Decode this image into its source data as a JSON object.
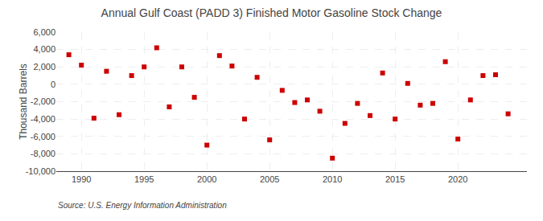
{
  "chart_data": {
    "type": "scatter",
    "title": "Annual Gulf Coast (PADD 3) Finished Motor Gasoline Stock Change",
    "ylabel": "Thousand Barrels",
    "source": "Source: U.S. Energy Information Administration",
    "x": [
      1989,
      1990,
      1991,
      1992,
      1993,
      1994,
      1995,
      1996,
      1997,
      1998,
      1999,
      2000,
      2001,
      2002,
      2003,
      2004,
      2005,
      2006,
      2007,
      2008,
      2009,
      2010,
      2011,
      2012,
      2013,
      2014,
      2015,
      2016,
      2017,
      2018,
      2019,
      2020,
      2021,
      2022,
      2023,
      2024
    ],
    "values": [
      3400,
      2200,
      -3900,
      1500,
      -3500,
      1000,
      2000,
      4200,
      -2600,
      2000,
      -1500,
      -7000,
      3300,
      2100,
      -4000,
      800,
      -6400,
      -700,
      -2100,
      -1800,
      -3100,
      -8500,
      -4500,
      -2200,
      -3600,
      1300,
      -4000,
      100,
      -2400,
      -2200,
      2600,
      -6300,
      -1800,
      1000,
      1100,
      -3400
    ],
    "color": "#cc0000",
    "marker": "square",
    "xlim": [
      1988.0,
      2025.5
    ],
    "xticks": [
      1990,
      1995,
      2000,
      2005,
      2010,
      2015,
      2020
    ],
    "ylim": [
      -10000,
      6000
    ],
    "yticks": [
      {
        "value": -10000,
        "label": "-10,000"
      },
      {
        "value": -8000,
        "label": "-8,000"
      },
      {
        "value": -6000,
        "label": "-6,000"
      },
      {
        "value": -4000,
        "label": "-4,000"
      },
      {
        "value": -2000,
        "label": "-2,000"
      },
      0,
      {
        "value": 2000,
        "label": "2,000"
      },
      {
        "value": 4000,
        "label": "4,000"
      },
      {
        "value": 6000,
        "label": "6,000"
      }
    ],
    "grid": true
  }
}
